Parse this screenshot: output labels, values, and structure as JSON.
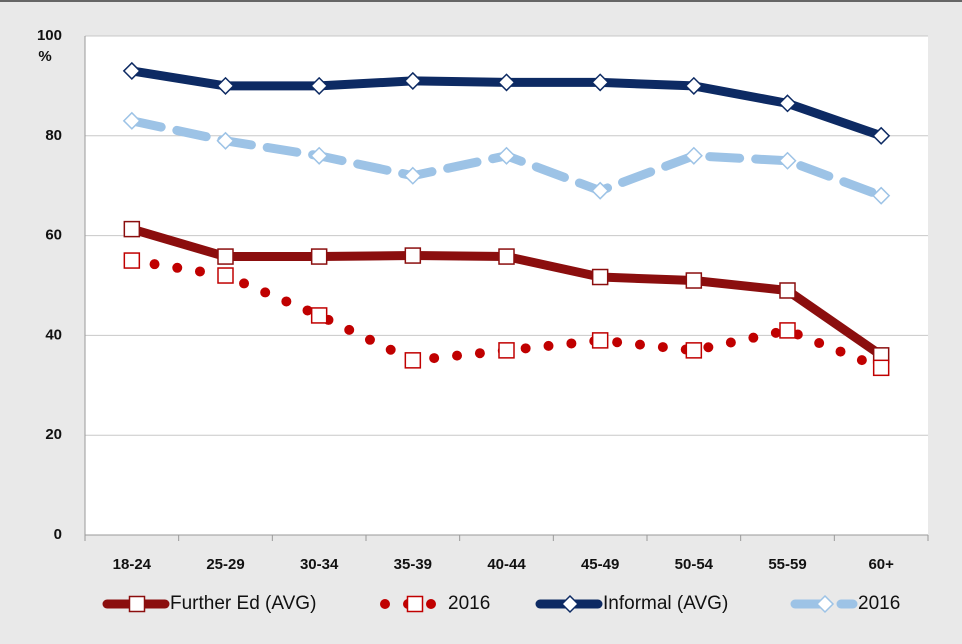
{
  "chart_data": {
    "type": "line",
    "y_label": "%",
    "categories": [
      "18-24",
      "25-29",
      "30-34",
      "35-39",
      "40-44",
      "45-49",
      "50-54",
      "55-59",
      "60+"
    ],
    "series": [
      {
        "name": "Further Ed (AVG)",
        "color": "#8b0e0e",
        "line_style": "solid",
        "marker": "square",
        "values": [
          61.3,
          55.8,
          55.8,
          56,
          55.8,
          51.7,
          51,
          49,
          36
        ]
      },
      {
        "name": "2016",
        "color": "#c00000",
        "line_style": "dotted",
        "marker": "square",
        "values": [
          55,
          52,
          44,
          35,
          37,
          39,
          37,
          41,
          33.5
        ]
      },
      {
        "name": "Informal (AVG)",
        "color": "#0d2a63",
        "line_style": "solid",
        "marker": "diamond",
        "values": [
          93,
          90,
          90,
          91,
          90.7,
          90.7,
          90,
          86.5,
          80
        ]
      },
      {
        "name": "2016",
        "color": "#9dc3e6",
        "line_style": "dashed",
        "marker": "diamond",
        "values": [
          83,
          79,
          76,
          72,
          76,
          69,
          76,
          75,
          68
        ]
      }
    ],
    "ylim": [
      0,
      100
    ],
    "yticks": [
      0,
      20,
      40,
      60,
      80,
      100
    ],
    "grid": true,
    "legend": "bottom"
  }
}
